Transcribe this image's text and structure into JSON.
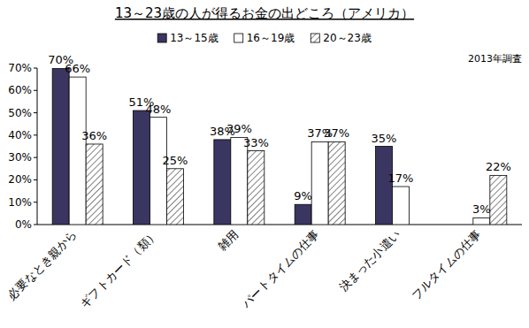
{
  "chart_data": {
    "type": "bar",
    "title": "13～23歳の人が得るお金の出どころ（アメリカ）",
    "note": "2013年調査",
    "categories": [
      "必要なとき親から",
      "ギフトカード（類）",
      "雑用",
      "パートタイムの仕事",
      "決まった小遣い",
      "フルタイムの仕事"
    ],
    "series": [
      {
        "name": "13～15歳",
        "color": "#3b3561",
        "values": [
          70,
          51,
          38,
          9,
          35,
          null
        ],
        "value_labels": [
          "70%",
          "51%",
          "38%",
          "9%",
          "35%",
          null
        ]
      },
      {
        "name": "16～19歳",
        "color": "#ffffff",
        "values": [
          66,
          48,
          39,
          37,
          17,
          3
        ],
        "value_labels": [
          "66%",
          "48%",
          "39%",
          "37%",
          "17%",
          "3%"
        ]
      },
      {
        "name": "20～23歳",
        "color": "#404040",
        "values": [
          36,
          25,
          33,
          37,
          null,
          22
        ],
        "value_labels": [
          "36%",
          "25%",
          "33%",
          "37%",
          null,
          "22%"
        ]
      }
    ],
    "ylim": [
      0,
      70
    ],
    "yticks": [
      {
        "value": 0,
        "label": "0%"
      },
      {
        "value": 10,
        "label": "10%"
      },
      {
        "value": 20,
        "label": "20%"
      },
      {
        "value": 30,
        "label": "30%"
      },
      {
        "value": 40,
        "label": "40%"
      },
      {
        "value": 50,
        "label": "50%"
      },
      {
        "value": 60,
        "label": "60%"
      },
      {
        "value": 70,
        "label": "70%"
      }
    ],
    "grid": false,
    "legend": "top",
    "data_labels": true
  }
}
